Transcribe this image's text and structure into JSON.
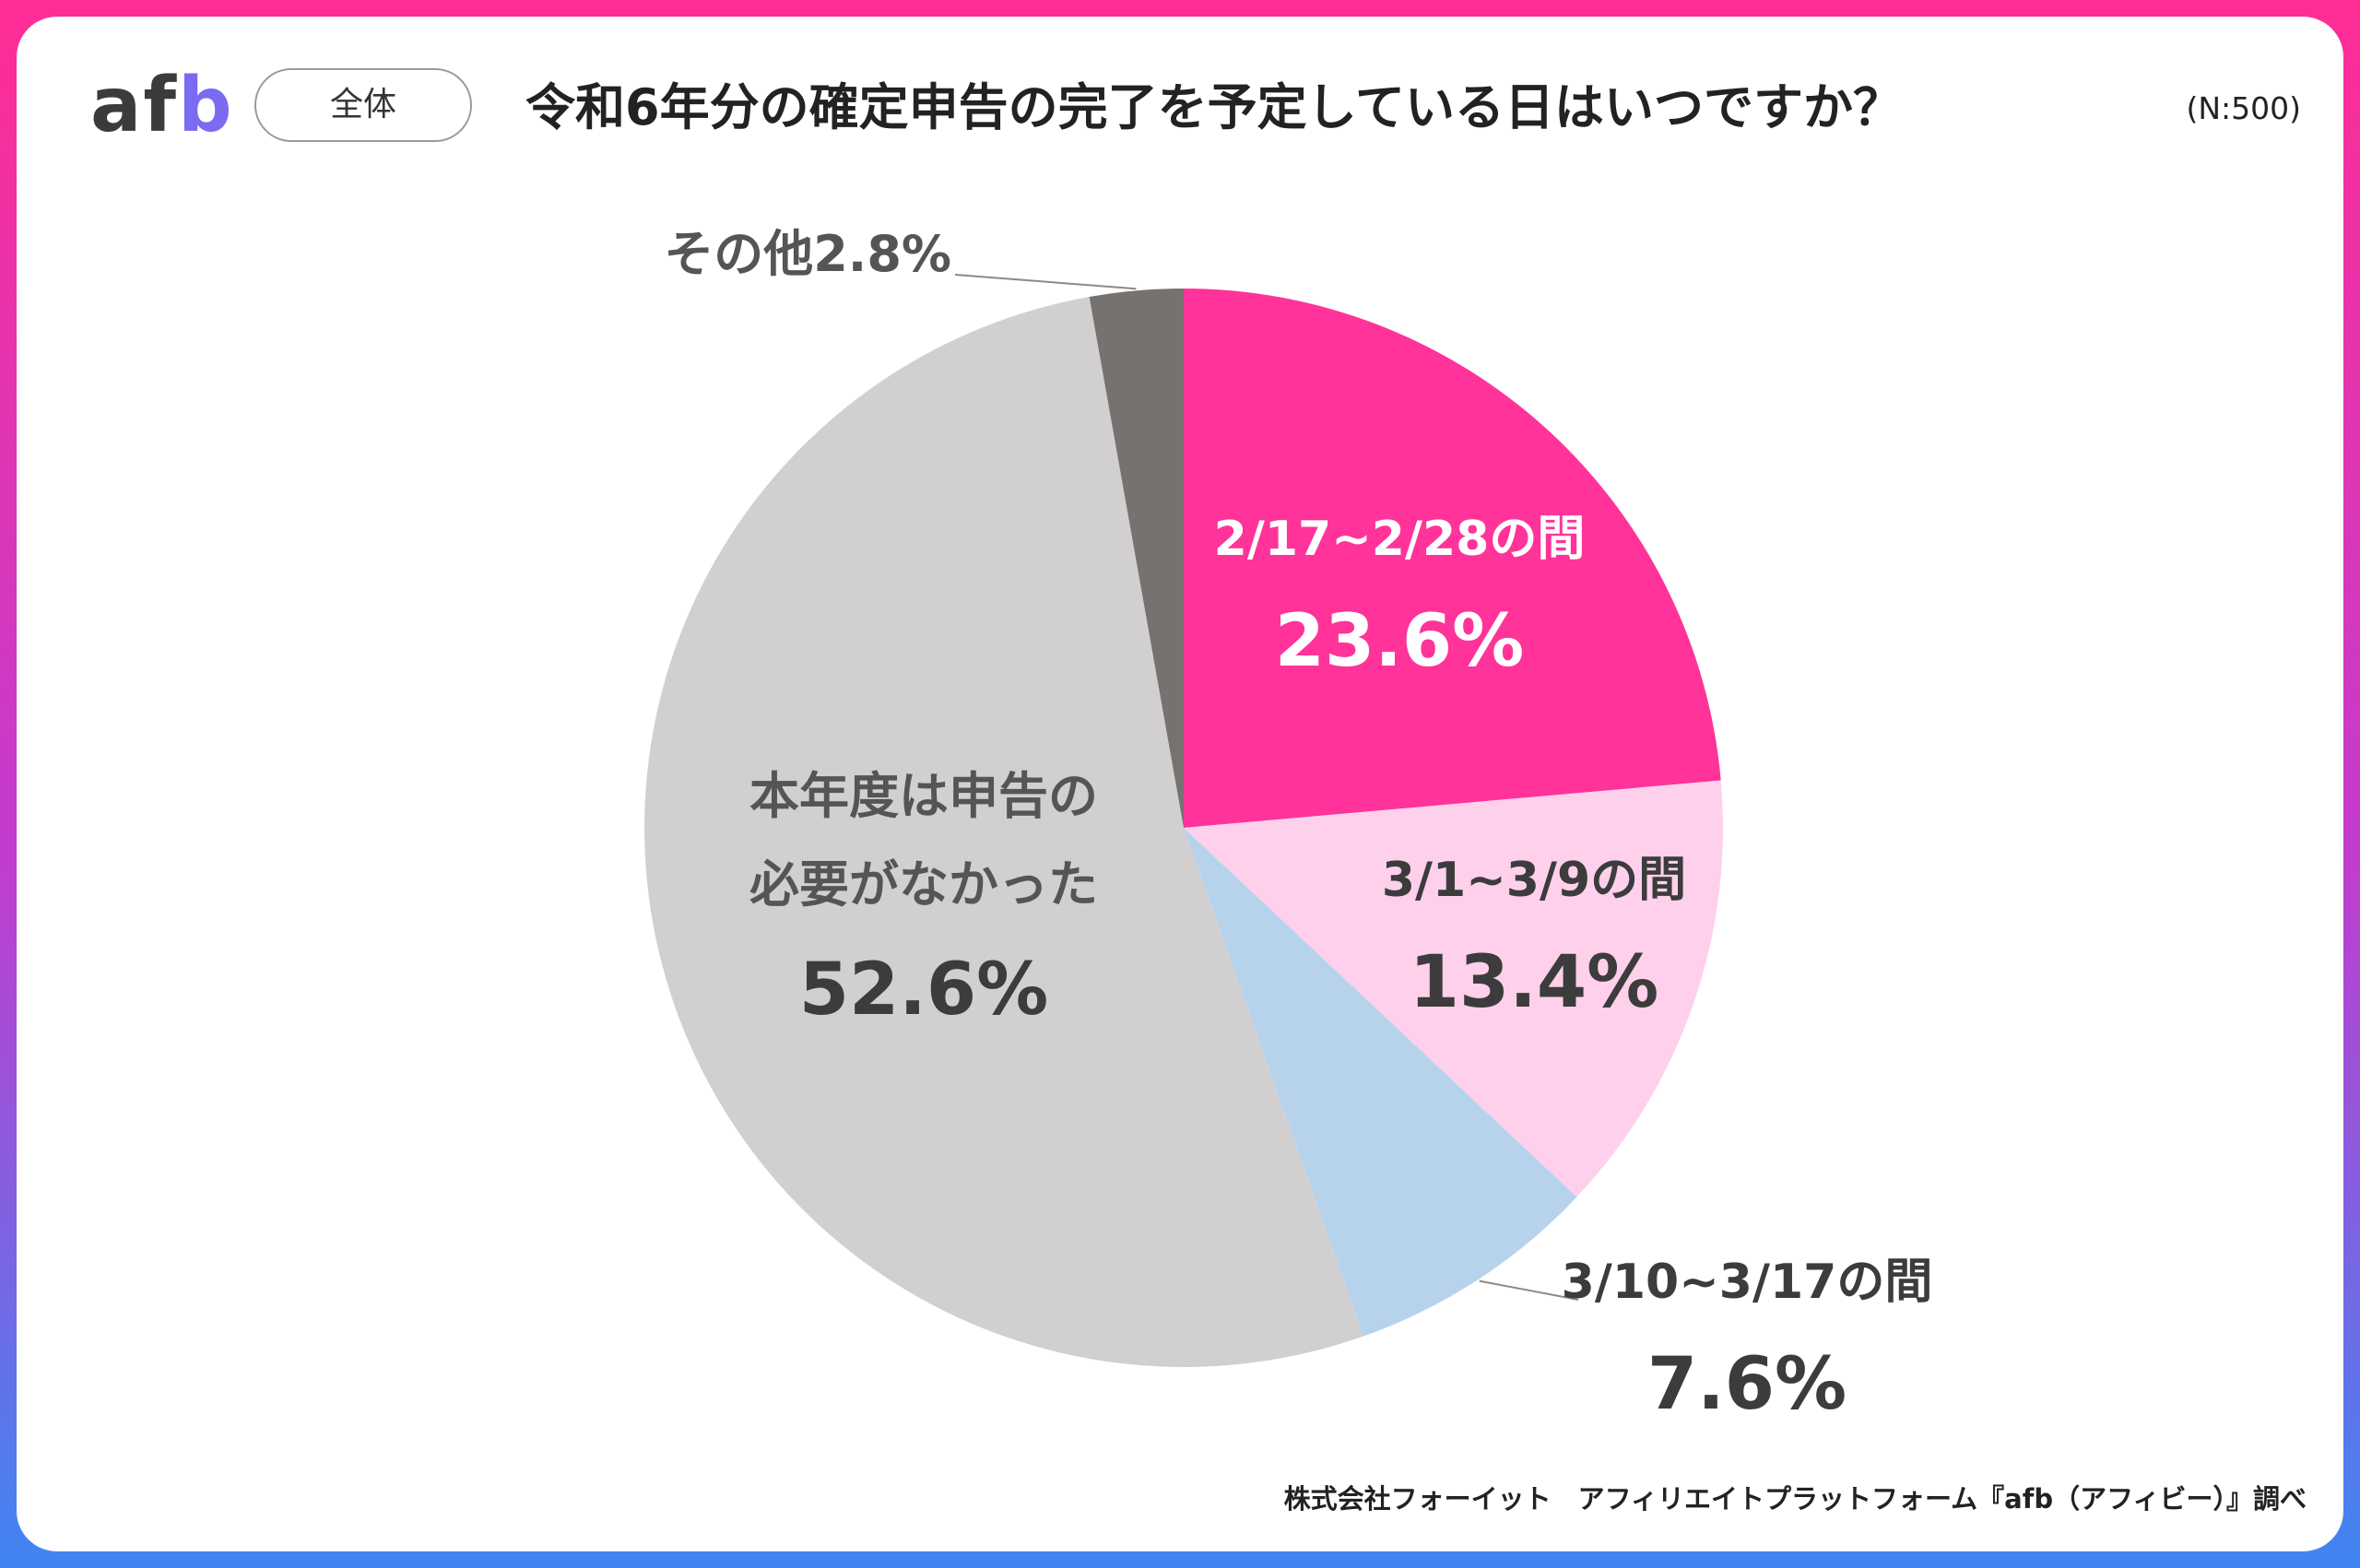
{
  "header": {
    "logo_text": "af",
    "logo_text_accent": "b",
    "scope_label": "全体",
    "title": "令和6年分の確定申告の完了を予定している日はいつですか？",
    "sample": "(N:500)"
  },
  "footer": {
    "source": "株式会社フォーイット　アフィリエイトプラットフォーム『afb（アフィビー）』調べ"
  },
  "colors": {
    "brand_pink": "#ff2d95",
    "brand_blue": "#3f86f2"
  },
  "chart_data": {
    "type": "pie",
    "start_angle_deg": 0,
    "direction": "clockwise",
    "slices": [
      {
        "label": "2/17~2/28の間",
        "value": 23.6,
        "value_text": "23.6%",
        "color": "#ff3399"
      },
      {
        "label": "3/1~3/9の間",
        "value": 13.4,
        "value_text": "13.4%",
        "color": "#ffd0ec"
      },
      {
        "label": "3/10~3/17の間",
        "value": 7.6,
        "value_text": "7.6%",
        "color": "#b7d3ec"
      },
      {
        "label_lines": [
          "本年度は申告の",
          "必要がなかった"
        ],
        "value": 52.6,
        "value_text": "52.6%",
        "color": "#d2cfd0"
      },
      {
        "label": "その他",
        "value": 2.8,
        "value_text": "2.8%",
        "color": "#767270"
      }
    ]
  }
}
